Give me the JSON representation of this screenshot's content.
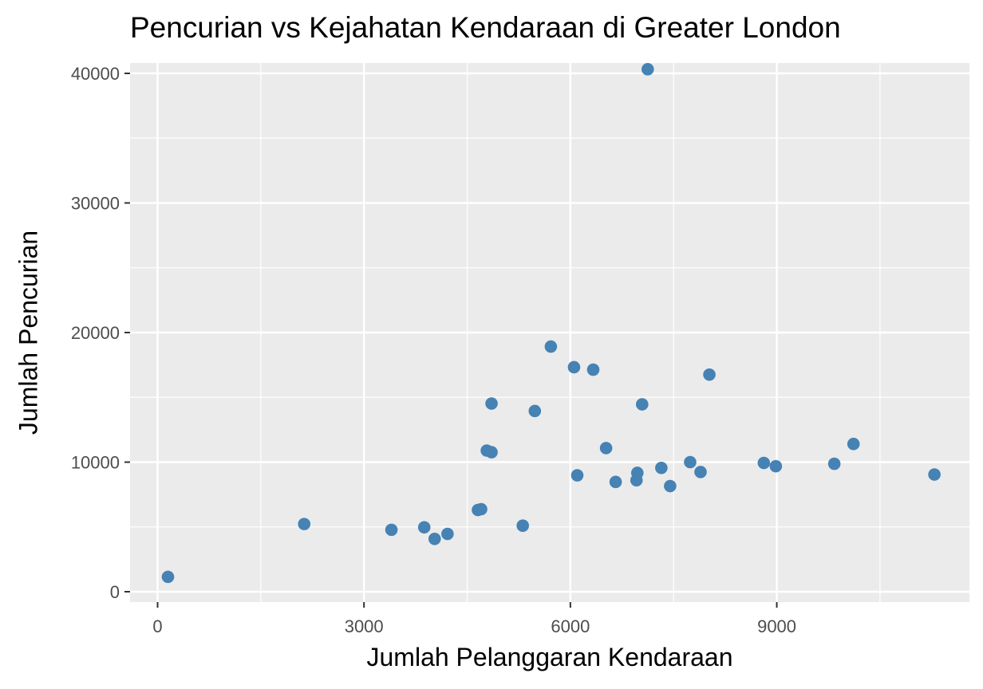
{
  "chart_data": {
    "type": "scatter",
    "title": "Pencurian vs Kejahatan Kendaraan di Greater London",
    "xlabel": "Jumlah Pelanggaran Kendaraan",
    "ylabel": "Jumlah Pencurian",
    "xlim": [
      -400,
      11800
    ],
    "ylim": [
      -800,
      40800
    ],
    "x_ticks": [
      0,
      3000,
      6000,
      9000
    ],
    "y_ticks": [
      0,
      10000,
      20000,
      30000,
      40000
    ],
    "x_tick_labels": [
      "0",
      "3000",
      "6000",
      "9000"
    ],
    "y_tick_labels": [
      "0",
      "10000",
      "20000",
      "30000",
      "40000"
    ],
    "grid": true,
    "legend": null,
    "point_color": "#4682B4",
    "panel_background": "#EBEBEB",
    "x": [
      151,
      2131,
      3399,
      3876,
      4027,
      4214,
      4656,
      4703,
      5308,
      4785,
      4854,
      4854,
      5483,
      5716,
      6053,
      6100,
      6332,
      6519,
      6658,
      6973,
      6961,
      7043,
      7124,
      7322,
      7450,
      7741,
      7892,
      8020,
      8812,
      8986,
      9836,
      10115,
      11291
    ],
    "y": [
      1146,
      5223,
      4777,
      4968,
      4076,
      4459,
      6306,
      6369,
      5096,
      10892,
      10764,
      14522,
      13949,
      18917,
      17325,
      8981,
      17134,
      11083,
      8471,
      9172,
      8599,
      14459,
      40318,
      9554,
      8153,
      10000,
      9236,
      16752,
      9936,
      9682,
      9873,
      11401,
      9045
    ]
  }
}
